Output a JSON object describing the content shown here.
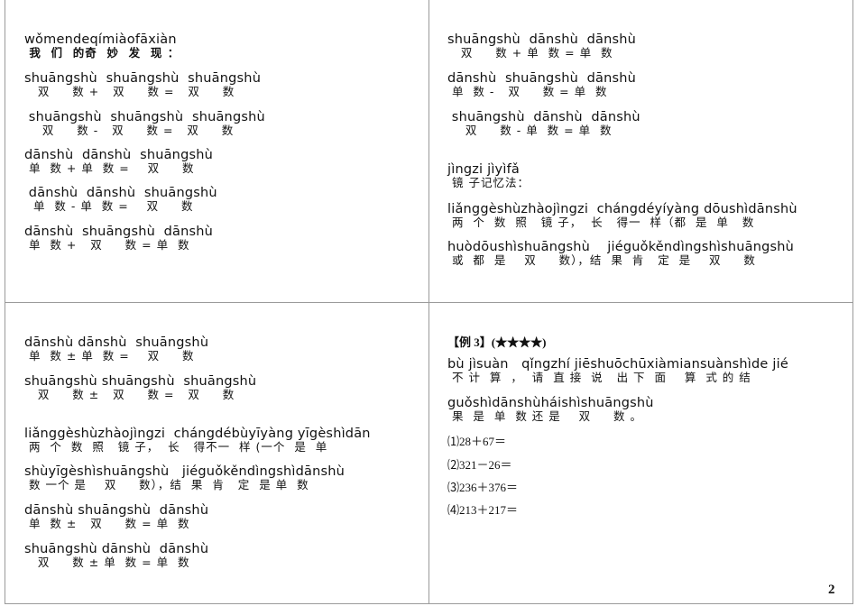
{
  "quadrant_top_left": {
    "title": {
      "pinyin": "wǒmendeqímiàofāxiàn",
      "hanzi": " 我  们  的奇  妙  发  现 ："
    },
    "rules": [
      {
        "pinyin": "shuāngshù  shuāngshù  shuāngshù",
        "hanzi": "   双     数 +   双     数 =   双     数"
      },
      {
        "pinyin": " shuāngshù  shuāngshù  shuāngshù",
        "hanzi": "    双     数 -   双     数 =   双     数"
      },
      {
        "pinyin": "dānshù  dānshù  shuāngshù",
        "hanzi": " 单  数 + 单  数 =    双     数"
      },
      {
        "pinyin": " dānshù  dānshù  shuāngshù",
        "hanzi": "  单  数 - 单  数 =    双     数"
      },
      {
        "pinyin": "dānshù  shuāngshù  dānshù",
        "hanzi": " 单  数 +   双     数 = 单  数"
      }
    ]
  },
  "quadrant_top_right": {
    "rules": [
      {
        "pinyin": "shuāngshù  dānshù  dānshù",
        "hanzi": "   双     数 + 单  数 = 单  数"
      },
      {
        "pinyin": "dānshù  shuāngshù  dānshù",
        "hanzi": " 单  数 -   双     数 = 单  数"
      },
      {
        "pinyin": " shuāngshù  dānshù  dānshù",
        "hanzi": "    双     数 - 单  数 = 单  数"
      }
    ],
    "mirror_title": {
      "pinyin": "jìngzi jìyìfǎ",
      "hanzi": " 镜 子记忆法："
    },
    "mirror_lines": [
      {
        "pinyin": "liǎnggèshùzhàojìngzi  chángdéyíyàng dōushìdānshù",
        "hanzi": " 两  个  数  照   镜 子，  长   得一  样（都  是  单   数"
      },
      {
        "pinyin": "huòdōushìshuāngshù    jiéguǒkěndìngshìshuāngshù",
        "hanzi": " 或  都  是    双     数），结  果  肯   定  是    双     数"
      }
    ]
  },
  "quadrant_bottom_left": {
    "lines": [
      {
        "pinyin": "dānshù dānshù  shuāngshù",
        "hanzi": " 单  数 ± 单  数 =    双     数"
      },
      {
        "pinyin": "shuāngshù shuāngshù  shuāngshù",
        "hanzi": "   双     数 ±   双     数 =   双     数"
      },
      {
        "pinyin": "liǎnggèshùzhàojìngzi  chángdébùyīyàng yīgèshìdān",
        "hanzi": " 两  个  数  照   镜 子，  长   得不一  样 (一个  是  单"
      },
      {
        "pinyin": "shùyīgèshìshuāngshù   jiéguǒkěndìngshìdānshù",
        "hanzi": " 数 一个 是    双     数），结  果  肯   定  是 单  数"
      },
      {
        "pinyin": "dānshù shuāngshù  dānshù",
        "hanzi": " 单  数 ±   双     数 = 单  数"
      },
      {
        "pinyin": "shuāngshù dānshù  dānshù",
        "hanzi": "   双     数 ± 单  数 = 单  数"
      }
    ]
  },
  "quadrant_bottom_right": {
    "example_header": "【例 3】(★★★★)",
    "instruction_lines": [
      {
        "pinyin": "bù jìsuàn   qǐngzhí jiēshuōchūxiàmiansuànshìde jié",
        "hanzi": " 不 计  算  ，  请  直 接  说   出 下  面    算  式 的 结"
      },
      {
        "pinyin": "guǒshìdānshùháishìshuāngshù",
        "hanzi": " 果  是  单  数 还 是    双     数 。"
      }
    ],
    "questions": [
      "⑴28＋67＝",
      "⑵321－26＝",
      "⑶236＋376＝",
      "⑷213＋217＝"
    ]
  },
  "page_number": "2"
}
